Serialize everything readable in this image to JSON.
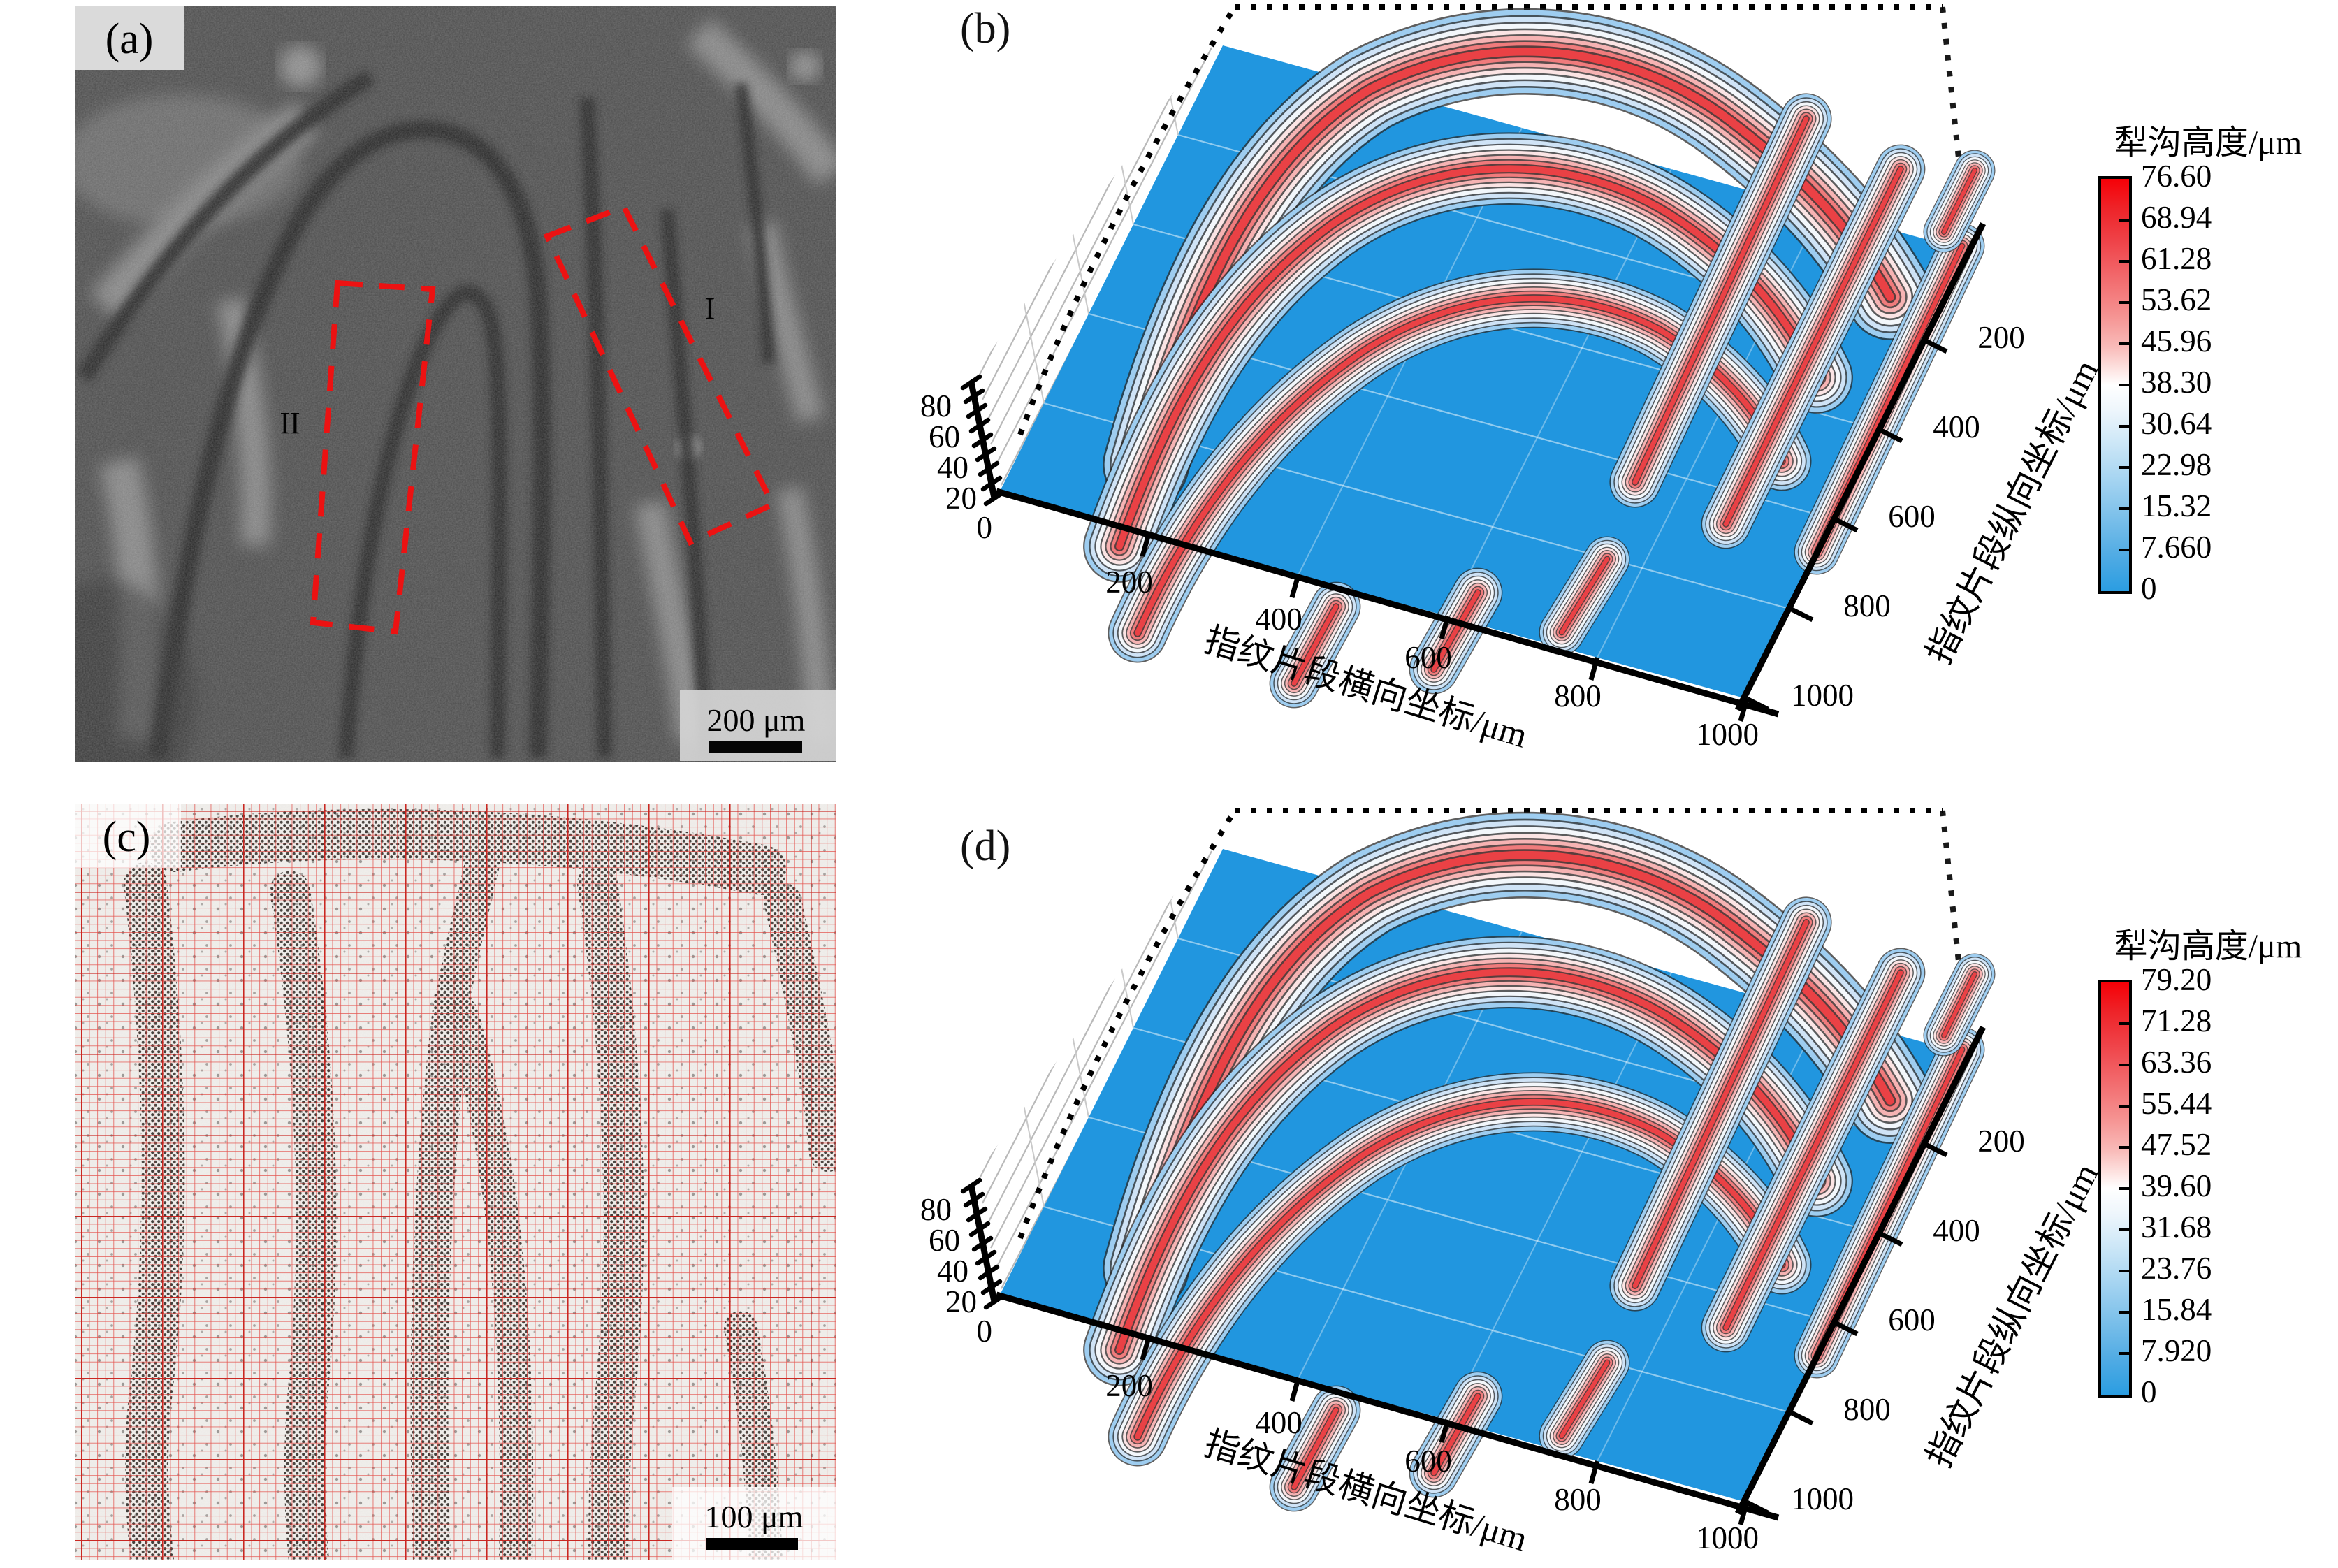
{
  "figure": {
    "background": "#ffffff"
  },
  "panels": {
    "a": {
      "label": "(a)",
      "scale_bar_text": "200 μm",
      "region_1": "I",
      "region_2": "II"
    },
    "b": {
      "label": "(b)"
    },
    "c": {
      "label": "(c)",
      "scale_bar_text": "100 μm"
    },
    "d": {
      "label": "(d)"
    }
  },
  "plot3d": {
    "xlabel": "指纹片段横向坐标/μm",
    "ylabel": "指纹片段纵向坐标/μm",
    "x_ticks": [
      "200",
      "400",
      "600",
      "800",
      "1000"
    ],
    "y_ticks": [
      "200",
      "400",
      "600",
      "800",
      "1000"
    ],
    "z_ticks": [
      "80",
      "60",
      "40",
      "20",
      "0"
    ]
  },
  "colorbar_b": {
    "title": "犁沟高度/μm",
    "ticks": [
      "76.60",
      "68.94",
      "61.28",
      "53.62",
      "45.96",
      "38.30",
      "30.64",
      "22.98",
      "15.32",
      "7.660",
      "0"
    ]
  },
  "colorbar_d": {
    "title": "犁沟高度/μm",
    "ticks": [
      "79.20",
      "71.28",
      "63.36",
      "55.44",
      "47.52",
      "39.60",
      "31.68",
      "23.76",
      "15.84",
      "7.920",
      "0"
    ]
  },
  "contour_levels": [
    [
      "rgba(40,40,40,0.75)",
      118
    ],
    [
      "#9ecdf0",
      113
    ],
    [
      "rgba(40,40,40,0.75)",
      99
    ],
    [
      "#cfe3f6",
      94
    ],
    [
      "rgba(40,40,40,0.75)",
      81
    ],
    [
      "#f3f7fb",
      76
    ],
    [
      "rgba(40,40,40,0.75)",
      63
    ],
    [
      "#fbe4e4",
      58
    ],
    [
      "rgba(40,40,40,0.75)",
      47
    ],
    [
      "#f6b3b3",
      42
    ],
    [
      "rgba(40,40,40,0.75)",
      31
    ],
    [
      "#f07b7c",
      26
    ],
    [
      "rgba(40,40,40,0.75)",
      16
    ],
    [
      "#ea4145",
      11
    ]
  ],
  "chart_data": [
    {
      "panel": "a",
      "type": "image",
      "description": "grayscale optical micrograph of a fingerprint segment with arch-shaped ridges",
      "scale_bar": "200 μm",
      "annotations": [
        "I",
        "II"
      ],
      "annotation_style": "red dashed tilted rectangles marking regions I and II"
    },
    {
      "panel": "b",
      "type": "heatmap",
      "render": "3d contour surface of region fingerprint segment",
      "xlabel": "指纹片段横向坐标/μm",
      "ylabel": "指纹片段纵向坐标/μm",
      "zlabel": "犁沟高度/μm",
      "x_range": [
        0,
        1000
      ],
      "y_range": [
        0,
        1000
      ],
      "z_range": [
        0,
        80
      ],
      "x_ticks": [
        200,
        400,
        600,
        800,
        1000
      ],
      "y_ticks": [
        200,
        400,
        600,
        800,
        1000
      ],
      "z_ticks": [
        0,
        20,
        40,
        60,
        80
      ],
      "colorbar_title": "犁沟高度/μm",
      "colorbar_ticks": [
        76.6,
        68.94,
        61.28,
        53.62,
        45.96,
        38.3,
        30.64,
        22.98,
        15.32,
        7.66,
        0
      ],
      "z_max": 76.6,
      "colormap": {
        "high": "#f50008",
        "mid": "#ffffff",
        "low": "#2b9fe2"
      },
      "pattern": "arched fingerprint ridges rising to ~76 μm (red tops) separated by blue valleys near 0 μm; blue base plane with white gaps, dotted box edges, hatched back wall"
    },
    {
      "panel": "c",
      "type": "image",
      "description": "light micrograph of fingerprint segment overlaid with fine red measurement grid; ridges appear as dark granular dotted bands",
      "scale_bar": "100 μm"
    },
    {
      "panel": "d",
      "type": "heatmap",
      "render": "3d contour surface of fingerprint segment (reconstructed)",
      "xlabel": "指纹片段横向坐标/μm",
      "ylabel": "指纹片段纵向坐标/μm",
      "zlabel": "犁沟高度/μm",
      "x_range": [
        0,
        1000
      ],
      "y_range": [
        0,
        1000
      ],
      "z_range": [
        0,
        80
      ],
      "x_ticks": [
        200,
        400,
        600,
        800,
        1000
      ],
      "y_ticks": [
        200,
        400,
        600,
        800,
        1000
      ],
      "z_ticks": [
        0,
        20,
        40,
        60,
        80
      ],
      "colorbar_title": "犁沟高度/μm",
      "colorbar_ticks": [
        79.2,
        71.28,
        63.36,
        55.44,
        47.52,
        39.6,
        31.68,
        23.76,
        15.84,
        7.92,
        0
      ],
      "z_max": 79.2,
      "colormap": {
        "high": "#f50008",
        "mid": "#ffffff",
        "low": "#2b9fe2"
      },
      "pattern": "same arched ridge pattern as panel (b) with slightly higher maximum furrow height"
    }
  ]
}
